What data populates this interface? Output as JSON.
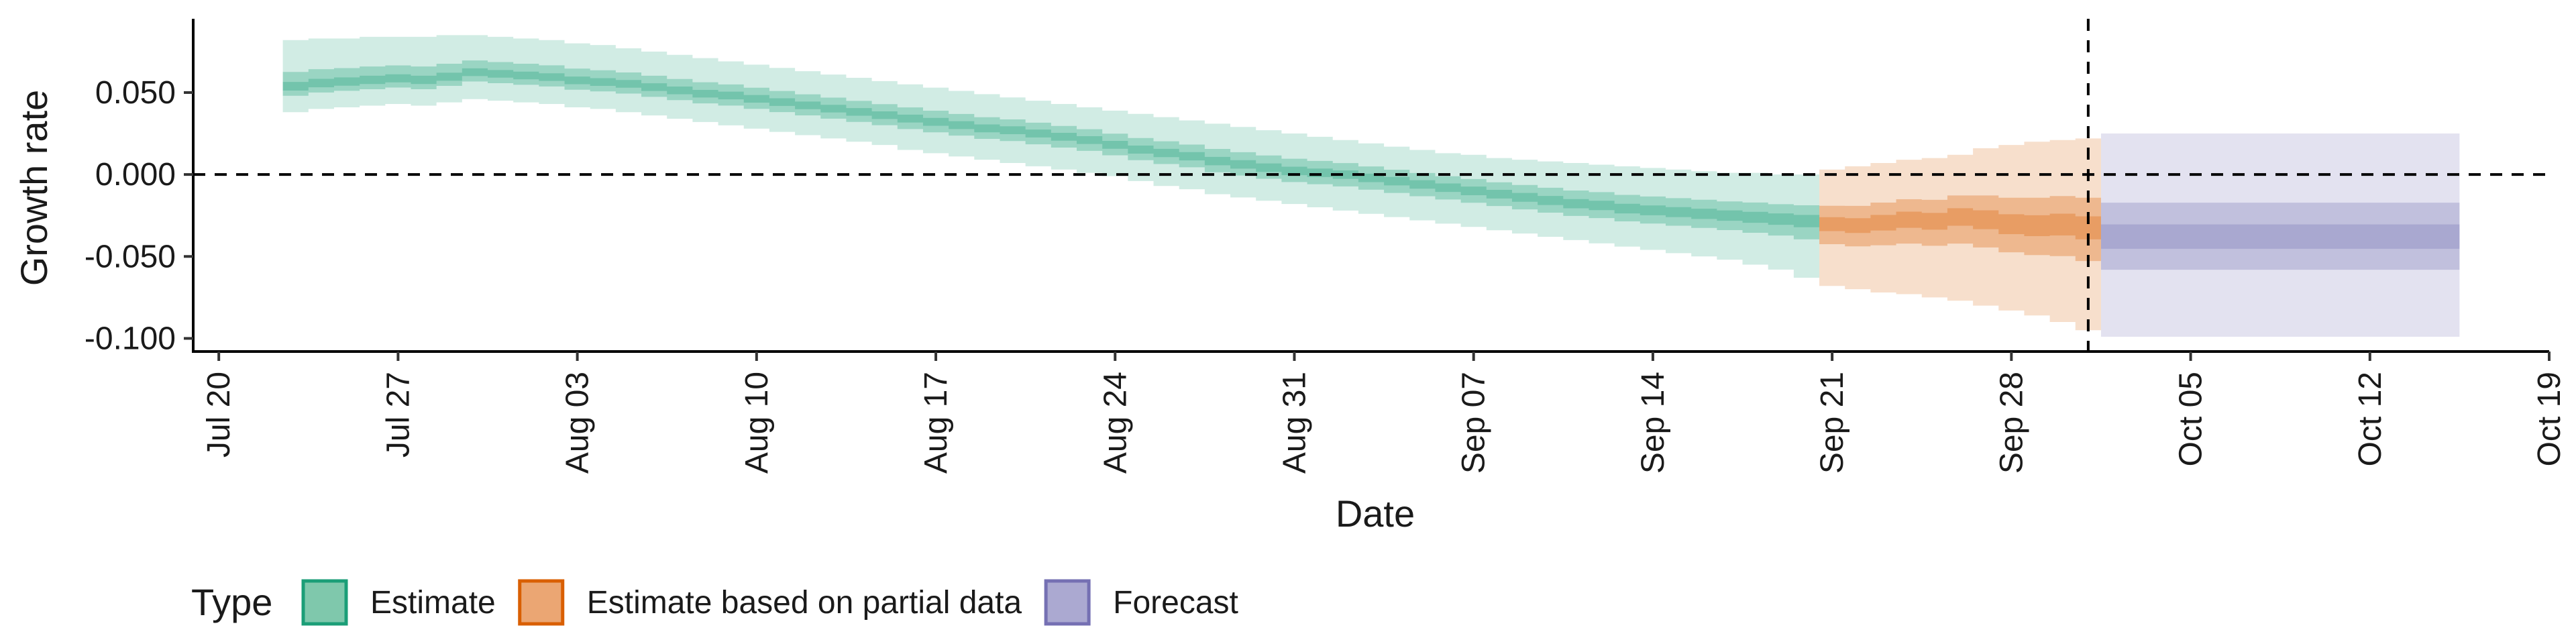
{
  "chart_data": {
    "type": "area",
    "xlabel": "Date",
    "ylabel": "Growth rate",
    "x_ticks": [
      "Jul 20",
      "Jul 27",
      "Aug 03",
      "Aug 10",
      "Aug 17",
      "Aug 24",
      "Aug 31",
      "Sep 07",
      "Sep 14",
      "Sep 21",
      "Sep 28",
      "Oct 05",
      "Oct 12",
      "Oct 19"
    ],
    "y_ticks": [
      "0.050",
      "0.000",
      "-0.050",
      "-0.100"
    ],
    "y_tick_values": [
      0.05,
      0.0,
      -0.05,
      -0.1
    ],
    "ylim": [
      -0.108,
      0.095
    ],
    "xlim": [
      "2020-07-19",
      "2020-10-19"
    ],
    "hline_y": 0.0,
    "vline_x": "2020-10-01",
    "legend": {
      "title": "Type",
      "placement": "bottom-left",
      "entries": [
        {
          "label": "Estimate",
          "fill": "#7fc8ac",
          "stroke": "#1b9e77"
        },
        {
          "label": "Estimate based on partial data",
          "fill": "#eba673",
          "stroke": "#d95f02"
        },
        {
          "label": "Forecast",
          "fill": "#aba9d1",
          "stroke": "#7570b3"
        }
      ]
    },
    "series": [
      {
        "name": "Estimate",
        "color": "#1b9e77",
        "start_date": "2020-07-23",
        "end_date": "2020-09-20",
        "median": [
          0.053,
          0.055,
          0.056,
          0.057,
          0.058,
          0.057,
          0.059,
          0.062,
          0.061,
          0.06,
          0.059,
          0.057,
          0.056,
          0.055,
          0.053,
          0.051,
          0.049,
          0.048,
          0.046,
          0.044,
          0.042,
          0.04,
          0.038,
          0.036,
          0.034,
          0.032,
          0.03,
          0.028,
          0.027,
          0.025,
          0.023,
          0.021,
          0.018,
          0.015,
          0.013,
          0.011,
          0.008,
          0.006,
          0.004,
          0.002,
          0.001,
          0.0,
          -0.002,
          -0.004,
          -0.006,
          -0.008,
          -0.01,
          -0.012,
          -0.014,
          -0.016,
          -0.018,
          -0.019,
          -0.021,
          -0.022,
          -0.023,
          -0.024,
          -0.025,
          -0.026,
          -0.027,
          -0.028
        ],
        "lower_90": [
          0.038,
          0.04,
          0.041,
          0.042,
          0.043,
          0.042,
          0.044,
          0.046,
          0.045,
          0.044,
          0.043,
          0.041,
          0.04,
          0.038,
          0.036,
          0.034,
          0.032,
          0.03,
          0.028,
          0.026,
          0.024,
          0.022,
          0.02,
          0.018,
          0.015,
          0.013,
          0.011,
          0.009,
          0.007,
          0.005,
          0.003,
          0.001,
          -0.001,
          -0.004,
          -0.007,
          -0.009,
          -0.012,
          -0.014,
          -0.016,
          -0.018,
          -0.02,
          -0.022,
          -0.024,
          -0.026,
          -0.028,
          -0.03,
          -0.032,
          -0.034,
          -0.036,
          -0.038,
          -0.04,
          -0.042,
          -0.044,
          -0.046,
          -0.048,
          -0.05,
          -0.052,
          -0.055,
          -0.058,
          -0.063
        ],
        "upper_90": [
          0.082,
          0.083,
          0.083,
          0.084,
          0.084,
          0.084,
          0.085,
          0.085,
          0.084,
          0.083,
          0.082,
          0.08,
          0.079,
          0.077,
          0.075,
          0.073,
          0.071,
          0.069,
          0.067,
          0.065,
          0.063,
          0.061,
          0.059,
          0.057,
          0.055,
          0.053,
          0.051,
          0.049,
          0.047,
          0.045,
          0.043,
          0.041,
          0.039,
          0.037,
          0.035,
          0.033,
          0.031,
          0.029,
          0.027,
          0.025,
          0.023,
          0.021,
          0.019,
          0.017,
          0.015,
          0.013,
          0.012,
          0.01,
          0.009,
          0.008,
          0.007,
          0.006,
          0.005,
          0.004,
          0.003,
          0.002,
          0.001,
          0.001,
          0.0,
          0.0
        ]
      },
      {
        "name": "Estimate based on partial data",
        "color": "#d95f02",
        "start_date": "2020-09-21",
        "end_date": "2020-10-01",
        "median": [
          -0.03,
          -0.031,
          -0.029,
          -0.027,
          -0.028,
          -0.025,
          -0.027,
          -0.03,
          -0.031,
          -0.03,
          -0.032
        ],
        "lower_90": [
          -0.068,
          -0.07,
          -0.072,
          -0.073,
          -0.075,
          -0.077,
          -0.08,
          -0.083,
          -0.086,
          -0.09,
          -0.095
        ],
        "upper_90": [
          0.003,
          0.005,
          0.007,
          0.009,
          0.01,
          0.012,
          0.016,
          0.018,
          0.02,
          0.021,
          0.022
        ]
      },
      {
        "name": "Forecast",
        "color": "#7570b3",
        "start_date": "2020-10-02",
        "end_date": "2020-10-15",
        "median": [
          -0.038,
          -0.038,
          -0.038,
          -0.038,
          -0.038,
          -0.038,
          -0.038,
          -0.038,
          -0.038,
          -0.038,
          -0.038,
          -0.038,
          -0.038,
          -0.038
        ],
        "lower_90": [
          -0.099,
          -0.099,
          -0.099,
          -0.099,
          -0.099,
          -0.099,
          -0.099,
          -0.099,
          -0.099,
          -0.099,
          -0.099,
          -0.099,
          -0.099,
          -0.099
        ],
        "upper_90": [
          0.025,
          0.025,
          0.025,
          0.025,
          0.025,
          0.025,
          0.025,
          0.025,
          0.025,
          0.025,
          0.025,
          0.025,
          0.025,
          0.025
        ]
      }
    ]
  }
}
